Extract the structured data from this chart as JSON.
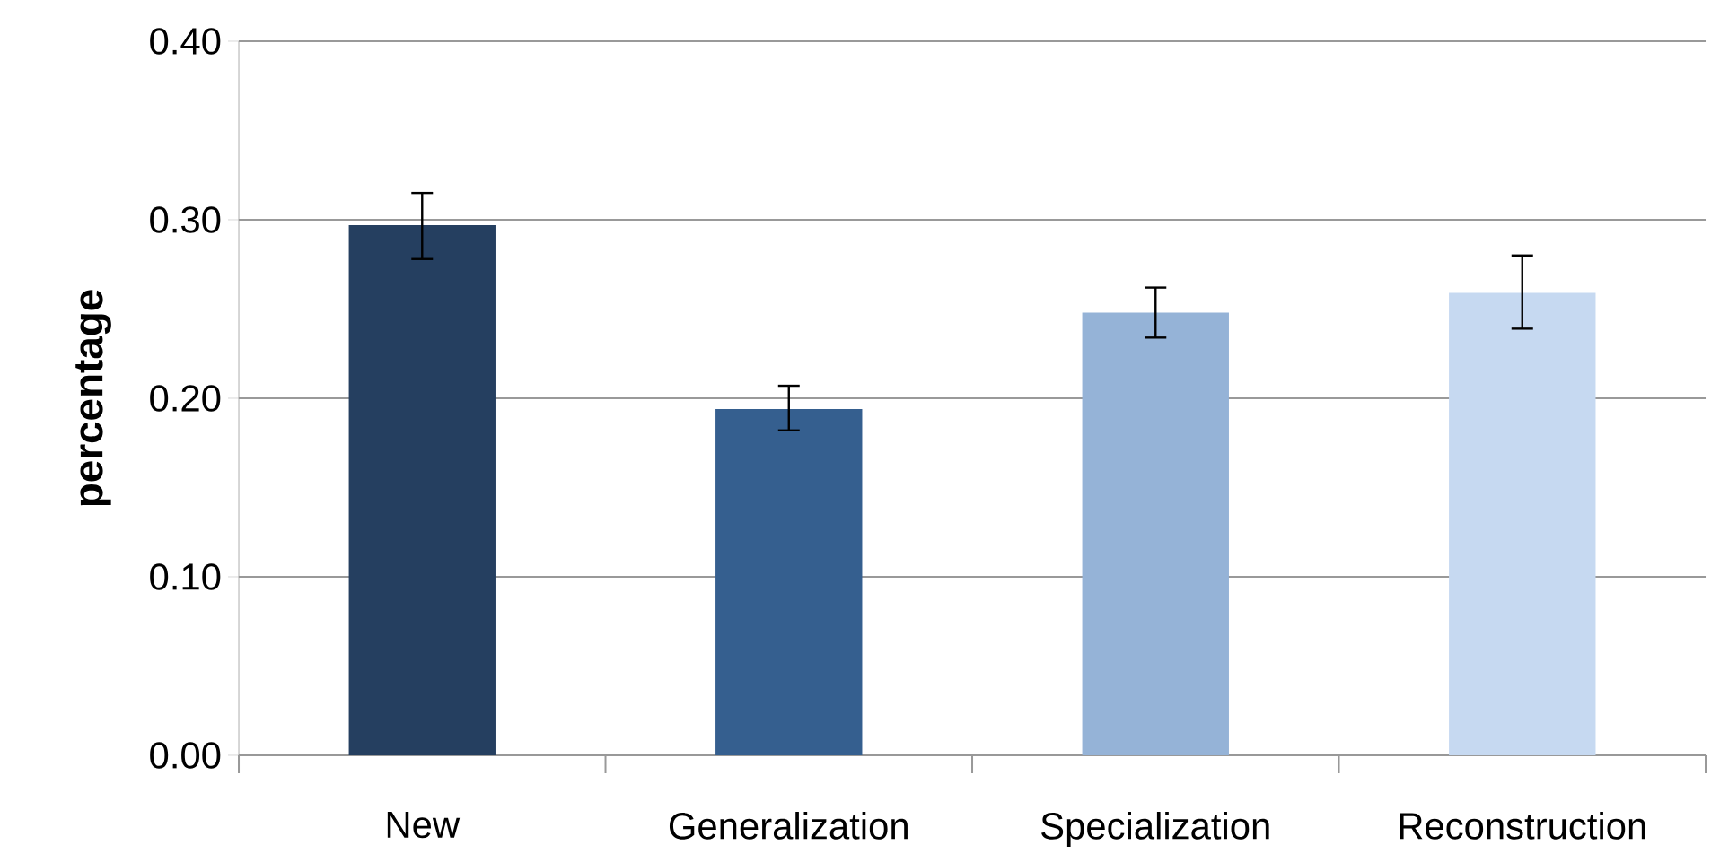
{
  "chart_data": {
    "type": "bar",
    "ylabel": "percentage",
    "categories": [
      "New",
      "Generalization",
      "Specialization",
      "Reconstruction"
    ],
    "values": [
      0.297,
      0.194,
      0.248,
      0.259
    ],
    "colors": [
      "#253f60",
      "#355f8f",
      "#95b3d7",
      "#c6d9f1"
    ],
    "errors": [
      [
        0.278,
        0.315
      ],
      [
        0.182,
        0.207
      ],
      [
        0.234,
        0.262
      ],
      [
        0.239,
        0.28
      ]
    ],
    "ylim": [
      0,
      0.4
    ],
    "yticks": [
      {
        "value": 0,
        "label": "0.00"
      },
      {
        "value": 0.1,
        "label": "0.10"
      },
      {
        "value": 0.2,
        "label": "0.20"
      },
      {
        "value": 0.3,
        "label": "0.30"
      },
      {
        "value": 0.4,
        "label": "0.40"
      }
    ],
    "grid": "y"
  }
}
